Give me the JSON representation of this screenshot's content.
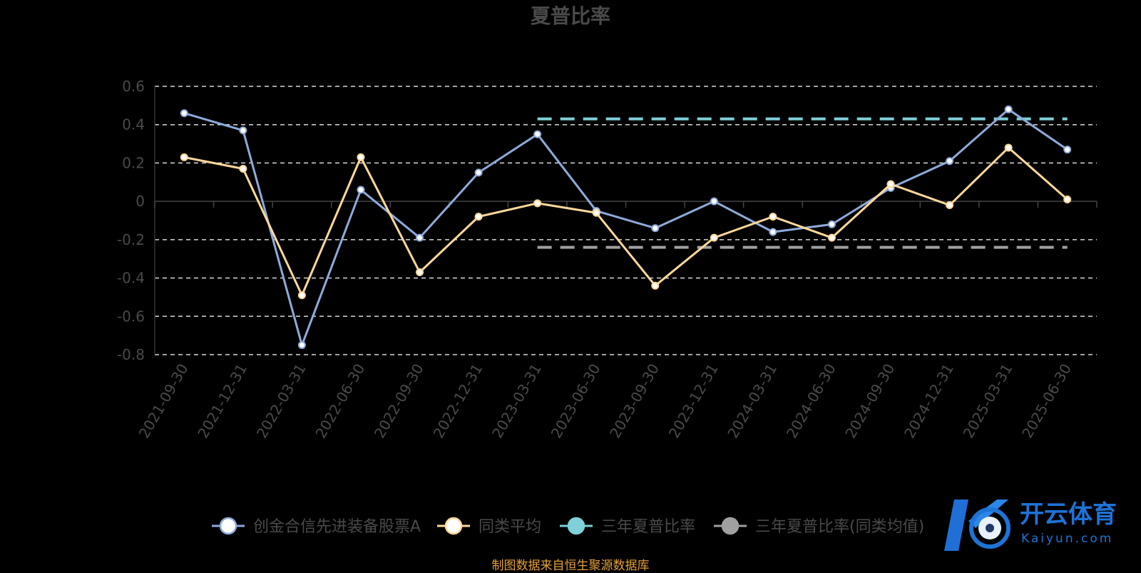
{
  "chart_data": {
    "type": "line",
    "title": "夏普比率",
    "categories": [
      "2021-09-30",
      "2021-12-31",
      "2022-03-31",
      "2022-06-30",
      "2022-09-30",
      "2022-12-31",
      "2023-03-31",
      "2023-06-30",
      "2023-09-30",
      "2023-12-31",
      "2024-03-31",
      "2024-06-30",
      "2024-09-30",
      "2024-12-31",
      "2025-03-31",
      "2025-06-30"
    ],
    "y_ticks": [
      "0.6",
      "0.4",
      "0.2",
      "0",
      "-0.2",
      "-0.4",
      "-0.6",
      "-0.8"
    ],
    "ylim": [
      -0.8,
      0.6
    ],
    "grid": true,
    "legend_placement": "bottom",
    "series": [
      {
        "name": "创金合信先进装备股票A",
        "color": "#8eaadb",
        "values": [
          0.46,
          0.37,
          -0.75,
          0.06,
          -0.19,
          0.15,
          0.35,
          -0.05,
          -0.14,
          0.0,
          -0.16,
          -0.12,
          0.07,
          0.21,
          0.48,
          0.27
        ]
      },
      {
        "name": "同类平均",
        "color": "#ffd899",
        "values": [
          0.23,
          0.17,
          -0.49,
          0.23,
          -0.37,
          -0.08,
          -0.01,
          -0.06,
          -0.44,
          -0.19,
          -0.08,
          -0.19,
          0.09,
          -0.02,
          0.28,
          0.01
        ]
      },
      {
        "name": "三年夏普比率",
        "color": "#7fd0d8",
        "style": "dashed",
        "segment": [
          "2023-03-31",
          "2025-06-30"
        ],
        "value": 0.43
      },
      {
        "name": "三年夏普比率(同类均值)",
        "color": "#a0a0a0",
        "style": "dashed",
        "segment": [
          "2023-03-31",
          "2025-06-30"
        ],
        "value": -0.24
      }
    ]
  },
  "legend": [
    {
      "label": "创金合信先进装备股票A",
      "color": "#8eaadb"
    },
    {
      "label": "同类平均",
      "color": "#ffd899"
    },
    {
      "label": "三年夏普比率",
      "color": "#7fd0d8"
    },
    {
      "label": "三年夏普比率(同类均值)",
      "color": "#a0a0a0"
    }
  ],
  "source_text": "制图数据来自恒生聚源数据库",
  "watermark": {
    "name": "开云体育",
    "domain": "Kaiyun.com"
  }
}
